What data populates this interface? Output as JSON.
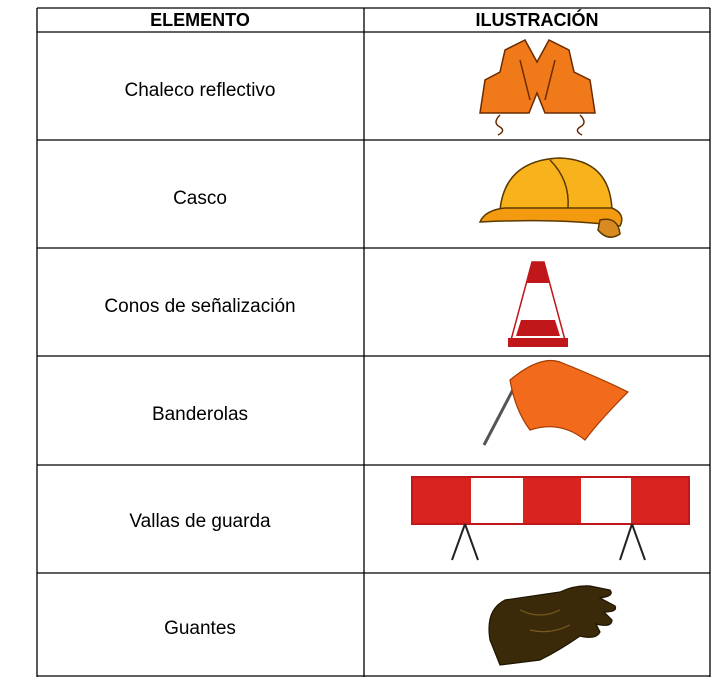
{
  "table": {
    "header": [
      "ELEMENTO",
      "ILUSTRACIÓN"
    ],
    "rows": [
      [
        "Chaleco reflectivo"
      ],
      [
        "Casco"
      ],
      [
        "Conos de señalización"
      ],
      [
        "Banderolas"
      ],
      [
        "Vallas de guarda"
      ],
      [
        "Guantes"
      ]
    ]
  }
}
